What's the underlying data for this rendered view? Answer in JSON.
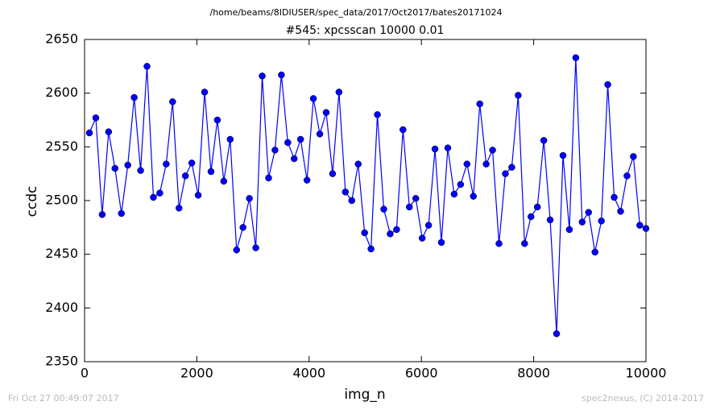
{
  "chart_data": {
    "type": "line",
    "suptitle": "/home/beams/8IDIUSER/spec_data/2017/Oct2017/bates20171024",
    "title": "#545: xpcsscan 10000 0.01",
    "x_label": "img_n",
    "y_label": "ccdc",
    "footer_left": "Fri Oct 27 00:49:07 2017",
    "footer_right": "spec2nexus, (C) 2014-2017",
    "xlim": [
      0,
      10000
    ],
    "xticks": [
      0,
      2000,
      4000,
      6000,
      8000,
      10000
    ],
    "ylim": [
      2350,
      2650
    ],
    "yticks": [
      2350,
      2400,
      2450,
      2500,
      2550,
      2600,
      2650
    ],
    "grid": false,
    "x": [
      86,
      200,
      314,
      428,
      542,
      656,
      770,
      884,
      998,
      1112,
      1226,
      1340,
      1454,
      1568,
      1682,
      1796,
      1910,
      2024,
      2138,
      2252,
      2366,
      2480,
      2594,
      2708,
      2822,
      2936,
      3050,
      3164,
      3278,
      3392,
      3506,
      3620,
      3734,
      3848,
      3962,
      4076,
      4190,
      4304,
      4418,
      4532,
      4646,
      4760,
      4874,
      4988,
      5102,
      5216,
      5330,
      5444,
      5558,
      5672,
      5786,
      5900,
      6014,
      6128,
      6242,
      6356,
      6470,
      6584,
      6698,
      6812,
      6926,
      7040,
      7154,
      7268,
      7382,
      7496,
      7610,
      7724,
      7838,
      7952,
      8066,
      8180,
      8294,
      8408,
      8522,
      8636,
      8750,
      8864,
      8978,
      9092,
      9206,
      9320,
      9434,
      9548,
      9662,
      9776,
      9890,
      10000
    ],
    "series": [
      {
        "name": "ccdc",
        "color": "#0000ff",
        "values": [
          2563,
          2577,
          2487,
          2564,
          2530,
          2488,
          2533,
          2596,
          2528,
          2625,
          2503,
          2507,
          2534,
          2592,
          2493,
          2523,
          2535,
          2505,
          2601,
          2527,
          2575,
          2518,
          2557,
          2454,
          2475,
          2502,
          2456,
          2616,
          2521,
          2547,
          2617,
          2554,
          2539,
          2557,
          2519,
          2595,
          2562,
          2582,
          2525,
          2601,
          2508,
          2500,
          2534,
          2470,
          2455,
          2580,
          2492,
          2469,
          2473,
          2566,
          2494,
          2502,
          2465,
          2477,
          2548,
          2461,
          2549,
          2506,
          2515,
          2534,
          2504,
          2590,
          2534,
          2547,
          2460,
          2525,
          2531,
          2598,
          2460,
          2485,
          2494,
          2556,
          2482,
          2376,
          2542,
          2473,
          2633,
          2480,
          2489,
          2452,
          2481,
          2608,
          2503,
          2490,
          2523,
          2541,
          2477,
          2474
        ]
      }
    ]
  }
}
